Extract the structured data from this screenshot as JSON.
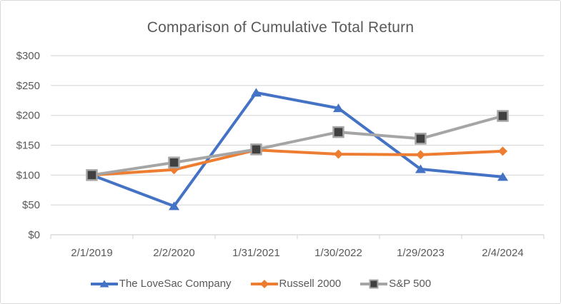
{
  "chart_data": {
    "type": "line",
    "title": "Comparison of Cumulative Total Return",
    "categories": [
      "2/1/2019",
      "2/2/2020",
      "1/31/2021",
      "1/30/2022",
      "1/29/2023",
      "2/4/2024"
    ],
    "series": [
      {
        "name": "The LoveSac Company",
        "color": "#4472C4",
        "marker": "triangle",
        "values": [
          100,
          48,
          238,
          212,
          110,
          97
        ]
      },
      {
        "name": "Russell 2000",
        "color": "#ED7D31",
        "marker": "diamond",
        "values": [
          100,
          109,
          142,
          135,
          134,
          140
        ]
      },
      {
        "name": "S&P 500",
        "color": "#A5A5A5",
        "marker": "square",
        "marker_fill": "#404040",
        "values": [
          100,
          121,
          143,
          172,
          161,
          199
        ]
      }
    ],
    "ylim": [
      0,
      300
    ],
    "ytick_step": 50,
    "ytick_labels": [
      "$0",
      "$50",
      "$100",
      "$150",
      "$200",
      "$250",
      "$300"
    ],
    "xlabel": "",
    "ylabel": "",
    "grid": "horizontal",
    "legend_position": "bottom",
    "axis_color": "#D9D9D9",
    "text_color": "#595959",
    "background": "#FFFFFF"
  }
}
